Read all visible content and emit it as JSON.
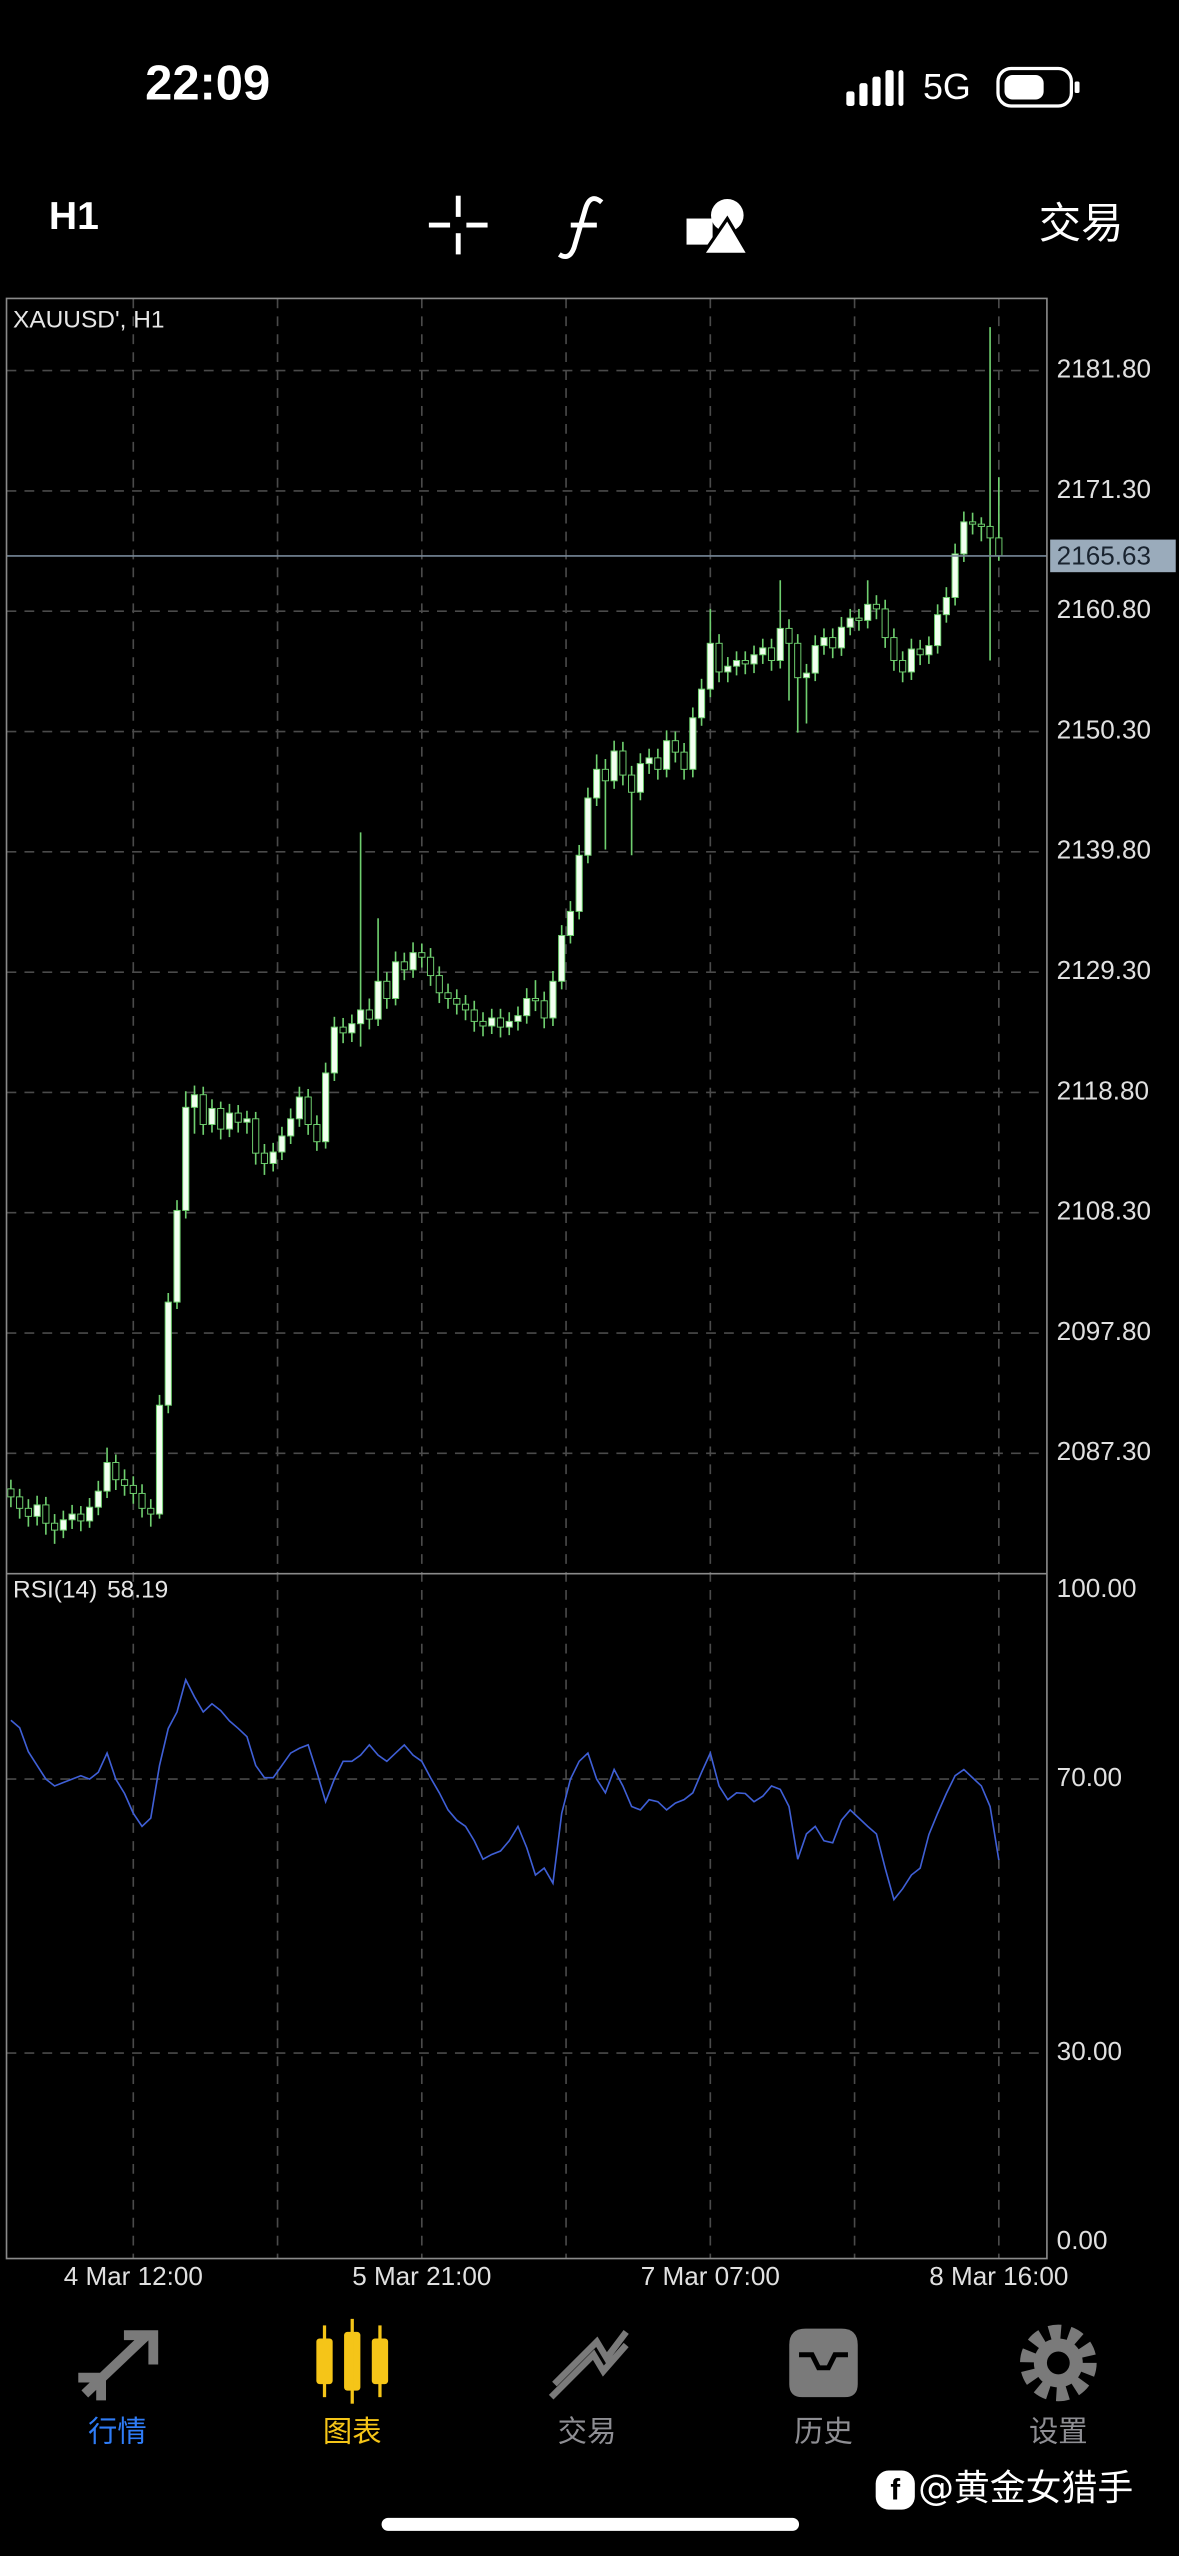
{
  "status_bar": {
    "time": "22:09",
    "network": "5G"
  },
  "toolbar": {
    "timeframe": "H1",
    "trade": "交易"
  },
  "chart_data": [
    {
      "type": "candlestick",
      "title": "XAUUSD', H1",
      "up_color": "#f2fff0",
      "down_color": "#000000",
      "wick_color": "#6fcf6f",
      "open": [
        2084.2,
        2083.5,
        2082.5,
        2081.8,
        2082.8,
        2081.2,
        2080.6,
        2081.5,
        2082.0,
        2081.4,
        2082.6,
        2084.0,
        2086.5,
        2085.0,
        2084.5,
        2083.8,
        2082.5,
        2082.0,
        2091.5,
        2100.5,
        2108.5,
        2117.5,
        2118.6,
        2116.0,
        2117.4,
        2115.6,
        2117.0,
        2116.2,
        2116.5,
        2113.5,
        2112.6,
        2113.6,
        2115.0,
        2116.5,
        2118.4,
        2116.0,
        2114.5,
        2120.5,
        2124.5,
        2124.0,
        2124.8,
        2126.0,
        2125.2,
        2128.5,
        2127.0,
        2130.2,
        2129.5,
        2131.0,
        2130.6,
        2129.0,
        2127.5,
        2127.0,
        2126.5,
        2126.0,
        2125.0,
        2124.6,
        2125.3,
        2124.5,
        2125.0,
        2125.5,
        2127.0,
        2126.8,
        2125.3,
        2128.5,
        2132.5,
        2134.6,
        2139.5,
        2144.5,
        2147.0,
        2146.0,
        2148.6,
        2146.5,
        2145.0,
        2147.5,
        2148.0,
        2147.0,
        2149.5,
        2148.5,
        2147.0,
        2151.5,
        2154.0,
        2158.0,
        2155.5,
        2156.0,
        2156.5,
        2156.2,
        2157.0,
        2157.6,
        2156.5,
        2159.3,
        2158.0,
        2155.0,
        2155.4,
        2157.8,
        2158.5,
        2157.6,
        2159.4,
        2160.2,
        2160.0,
        2161.4,
        2161.0,
        2158.5,
        2156.5,
        2155.5,
        2157.5,
        2157.0,
        2157.8,
        2160.5,
        2162.0,
        2165.8,
        2168.6,
        2168.4,
        2168.2,
        2167.2
      ],
      "high": [
        2085.0,
        2084.2,
        2083.3,
        2083.6,
        2083.5,
        2082.0,
        2082.3,
        2082.8,
        2082.7,
        2083.4,
        2084.9,
        2087.8,
        2087.2,
        2085.9,
        2085.3,
        2084.6,
        2083.3,
        2092.4,
        2101.3,
        2109.4,
        2118.9,
        2119.4,
        2119.3,
        2118.2,
        2118.0,
        2117.8,
        2117.7,
        2117.2,
        2117.1,
        2114.3,
        2114.4,
        2115.8,
        2117.4,
        2119.3,
        2119.1,
        2116.8,
        2121.4,
        2125.4,
        2125.3,
        2125.6,
        2141.5,
        2127.0,
        2134.0,
        2129.3,
        2131.1,
        2131.0,
        2131.9,
        2131.8,
        2131.4,
        2129.8,
        2128.3,
        2127.8,
        2127.3,
        2126.8,
        2125.8,
        2126.1,
        2126.1,
        2125.8,
        2126.3,
        2127.9,
        2128.6,
        2127.6,
        2129.4,
        2133.4,
        2135.5,
        2140.4,
        2145.4,
        2148.3,
        2147.9,
        2149.5,
        2149.4,
        2147.3,
        2148.4,
        2148.8,
        2148.8,
        2150.4,
        2150.3,
        2149.3,
        2152.4,
        2154.9,
        2161.0,
        2158.8,
        2156.8,
        2157.3,
        2157.3,
        2157.8,
        2158.4,
        2158.4,
        2163.5,
        2160.1,
        2158.8,
        2156.2,
        2158.7,
        2159.3,
        2159.3,
        2160.3,
        2161.0,
        2161.0,
        2163.5,
        2162.2,
        2161.8,
        2159.3,
        2157.3,
        2158.4,
        2158.3,
        2158.6,
        2161.4,
        2162.9,
        2166.7,
        2169.5,
        2169.4,
        2169.0,
        2185.6,
        2172.5
      ],
      "low": [
        2082.6,
        2081.6,
        2080.9,
        2081.0,
        2080.2,
        2079.4,
        2079.9,
        2080.7,
        2080.5,
        2080.8,
        2081.9,
        2083.4,
        2084.1,
        2083.6,
        2082.9,
        2081.7,
        2080.9,
        2081.6,
        2090.8,
        2099.9,
        2107.8,
        2115.2,
        2115.1,
        2115.3,
        2114.7,
        2114.9,
        2115.3,
        2115.2,
        2112.5,
        2111.6,
        2111.9,
        2112.9,
        2114.3,
        2115.8,
        2115.1,
        2113.7,
        2113.9,
        2119.8,
        2123.1,
        2123.2,
        2122.8,
        2124.3,
        2124.6,
        2126.1,
        2126.4,
        2128.6,
        2128.8,
        2129.7,
        2128.1,
        2126.6,
        2126.1,
        2125.6,
        2125.1,
        2124.1,
        2123.7,
        2123.9,
        2123.6,
        2123.8,
        2124.2,
        2124.8,
        2125.9,
        2124.4,
        2124.6,
        2127.8,
        2131.8,
        2133.9,
        2138.8,
        2143.8,
        2140.0,
        2145.3,
        2145.6,
        2139.5,
        2144.3,
        2146.6,
        2146.1,
        2146.3,
        2147.6,
        2146.1,
        2146.3,
        2150.8,
        2153.3,
        2154.6,
        2154.6,
        2155.2,
        2155.3,
        2155.4,
        2156.2,
        2155.6,
        2155.8,
        2153.0,
        2150.2,
        2151.0,
        2154.7,
        2157.0,
        2156.7,
        2156.9,
        2158.7,
        2159.1,
        2159.3,
        2160.1,
        2157.6,
        2155.6,
        2154.6,
        2154.8,
        2156.1,
        2156.2,
        2157.1,
        2159.8,
        2161.3,
        2165.1,
        2167.5,
        2166.9,
        2156.5,
        2165.2
      ],
      "close": [
        2083.5,
        2082.5,
        2081.8,
        2082.8,
        2081.2,
        2080.6,
        2081.5,
        2082.0,
        2081.4,
        2082.6,
        2084.0,
        2086.5,
        2085.0,
        2084.5,
        2083.8,
        2082.5,
        2082.0,
        2091.5,
        2100.5,
        2108.5,
        2117.5,
        2118.6,
        2116.0,
        2117.4,
        2115.6,
        2117.0,
        2116.2,
        2116.5,
        2113.5,
        2112.6,
        2113.6,
        2115.0,
        2116.5,
        2118.4,
        2116.0,
        2114.5,
        2120.5,
        2124.5,
        2124.0,
        2124.8,
        2126.0,
        2125.2,
        2128.5,
        2127.0,
        2130.2,
        2129.5,
        2131.0,
        2130.6,
        2129.0,
        2127.5,
        2127.0,
        2126.5,
        2126.0,
        2125.0,
        2124.6,
        2125.3,
        2124.5,
        2125.0,
        2125.5,
        2127.0,
        2126.8,
        2125.3,
        2128.5,
        2132.5,
        2134.6,
        2139.5,
        2144.5,
        2147.0,
        2146.0,
        2148.6,
        2146.5,
        2145.0,
        2147.5,
        2148.0,
        2147.0,
        2149.5,
        2148.5,
        2147.0,
        2151.5,
        2154.0,
        2158.0,
        2155.5,
        2156.0,
        2156.5,
        2156.2,
        2157.0,
        2157.6,
        2156.5,
        2159.3,
        2158.0,
        2155.0,
        2155.4,
        2157.8,
        2158.5,
        2157.6,
        2159.4,
        2160.2,
        2160.0,
        2161.4,
        2161.0,
        2158.5,
        2156.5,
        2155.5,
        2157.5,
        2157.0,
        2157.8,
        2160.5,
        2162.0,
        2165.8,
        2168.6,
        2168.4,
        2168.2,
        2167.2,
        2165.63
      ],
      "last_price": 2165.63,
      "xlim": [
        -0.5,
        118.5
      ],
      "xticks": [
        {
          "value": 14,
          "label": "4 Mar 12:00"
        },
        {
          "value": 47,
          "label": "5 Mar 21:00"
        },
        {
          "value": 80,
          "label": "7 Mar 07:00"
        },
        {
          "value": 113,
          "label": "8 Mar 16:00"
        }
      ],
      "ylim": [
        2076.8,
        2188.1
      ],
      "yticks": [
        {
          "value": 2181.8,
          "label": "2181.80"
        },
        {
          "value": 2171.3,
          "label": "2171.30"
        },
        {
          "value": 2160.8,
          "label": "2160.80"
        },
        {
          "value": 2150.3,
          "label": "2150.30"
        },
        {
          "value": 2139.8,
          "label": "2139.80"
        },
        {
          "value": 2129.3,
          "label": "2129.30"
        },
        {
          "value": 2118.8,
          "label": "2118.80"
        },
        {
          "value": 2108.3,
          "label": "2108.30"
        },
        {
          "value": 2097.8,
          "label": "2097.80"
        },
        {
          "value": 2087.3,
          "label": "2087.30"
        }
      ],
      "grid": true
    },
    {
      "type": "line",
      "title": "RSI(14)",
      "color": "#3f5fd6",
      "values": [
        78.6,
        77.5,
        74,
        72,
        70,
        69,
        69.5,
        70,
        70.5,
        70,
        71,
        73.8,
        70,
        67.9,
        65,
        63.1,
        64.3,
        72,
        77.4,
        79.8,
        84.5,
        82,
        79.8,
        81,
        80,
        78.5,
        77.4,
        76.2,
        72,
        70.2,
        70.2,
        72,
        73.8,
        74.5,
        75,
        71,
        66.7,
        70,
        72.6,
        72.6,
        73.5,
        75,
        73.5,
        72.6,
        73.8,
        75,
        73.5,
        72.6,
        70.2,
        68,
        65.5,
        64,
        63.1,
        61,
        58.3,
        59,
        59.5,
        61,
        63.1,
        60,
        56,
        57,
        54.8,
        65,
        70,
        72.6,
        73.8,
        70,
        68,
        71.4,
        69,
        66,
        65.5,
        67,
        66.7,
        65.5,
        66.5,
        67,
        68,
        71,
        73.8,
        69,
        67,
        68,
        67.9,
        66.7,
        67.5,
        69,
        68.5,
        66,
        58.3,
        62,
        63.1,
        61,
        60.7,
        64,
        65.5,
        64.3,
        63.1,
        62,
        57,
        52.4,
        54,
        56,
        57,
        61.9,
        65,
        67.9,
        70.5,
        71.4,
        70.2,
        69,
        66,
        58.19
      ],
      "ylim": [
        0,
        100
      ],
      "yticks": [
        {
          "value": 100,
          "label": "100.00"
        },
        {
          "value": 70,
          "label": "70.00"
        },
        {
          "value": 30,
          "label": "30.00"
        },
        {
          "value": 0,
          "label": "0.00"
        }
      ],
      "grid": true
    }
  ],
  "nav": {
    "items": [
      {
        "label": "行情"
      },
      {
        "label": "图表"
      },
      {
        "label": "交易"
      },
      {
        "label": "历史"
      },
      {
        "label": "设置"
      }
    ]
  },
  "watermark": "@黄金女猎手"
}
